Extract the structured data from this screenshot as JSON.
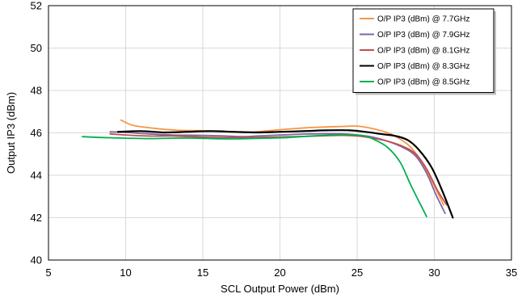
{
  "chart_data": {
    "type": "line",
    "title": "",
    "xlabel": "SCL Output Power (dBm)",
    "ylabel": "Output IP3 (dBm)",
    "xlim": [
      5,
      35
    ],
    "ylim": [
      40,
      52
    ],
    "xticks": [
      5,
      10,
      15,
      20,
      25,
      30,
      35
    ],
    "yticks": [
      40,
      42,
      44,
      46,
      48,
      50,
      52
    ],
    "grid": true,
    "legend_position": "top-right",
    "series": [
      {
        "name": "O/P IP3 (dBm) @ 7.7GHz",
        "color": "#f79646",
        "points": [
          [
            9.7,
            46.6
          ],
          [
            10.5,
            46.35
          ],
          [
            12,
            46.2
          ],
          [
            13.5,
            46.12
          ],
          [
            15,
            46.1
          ],
          [
            16.5,
            46.05
          ],
          [
            17.5,
            46.03
          ],
          [
            18.5,
            46.05
          ],
          [
            20,
            46.15
          ],
          [
            22,
            46.25
          ],
          [
            24,
            46.3
          ],
          [
            25,
            46.32
          ],
          [
            26,
            46.2
          ],
          [
            27,
            46.0
          ],
          [
            27.8,
            45.7
          ],
          [
            28.5,
            45.3
          ],
          [
            29.3,
            44.5
          ],
          [
            30,
            43.5
          ],
          [
            30.6,
            42.6
          ]
        ]
      },
      {
        "name": "O/P IP3 (dBm) @ 7.9GHz",
        "color": "#8064a2",
        "points": [
          [
            9,
            46.05
          ],
          [
            10,
            46.02
          ],
          [
            11.5,
            45.95
          ],
          [
            13,
            45.9
          ],
          [
            15,
            45.88
          ],
          [
            16.5,
            45.85
          ],
          [
            17.5,
            45.82
          ],
          [
            18.5,
            45.85
          ],
          [
            20,
            45.9
          ],
          [
            22,
            45.95
          ],
          [
            24,
            45.95
          ],
          [
            25,
            45.9
          ],
          [
            26,
            45.8
          ],
          [
            27,
            45.6
          ],
          [
            28,
            45.3
          ],
          [
            28.8,
            44.9
          ],
          [
            29.5,
            44.1
          ],
          [
            30.1,
            43.1
          ],
          [
            30.7,
            42.2
          ]
        ]
      },
      {
        "name": "O/P IP3 (dBm) @ 8.1GHz",
        "color": "#c0504d",
        "points": [
          [
            9,
            45.95
          ],
          [
            10,
            45.9
          ],
          [
            11.5,
            45.85
          ],
          [
            13,
            45.85
          ],
          [
            15,
            45.8
          ],
          [
            16.5,
            45.78
          ],
          [
            18,
            45.78
          ],
          [
            19.5,
            45.8
          ],
          [
            21,
            45.82
          ],
          [
            22.5,
            45.85
          ],
          [
            24,
            45.88
          ],
          [
            25,
            45.85
          ],
          [
            26,
            45.75
          ],
          [
            27,
            45.6
          ],
          [
            28,
            45.35
          ],
          [
            28.8,
            45.0
          ],
          [
            29.5,
            44.3
          ],
          [
            30.2,
            43.3
          ],
          [
            30.8,
            42.6
          ]
        ]
      },
      {
        "name": "O/P IP3 (dBm) @ 8.3GHz",
        "color": "#000000",
        "points": [
          [
            9.5,
            46.05
          ],
          [
            11,
            46.08
          ],
          [
            12.5,
            46.02
          ],
          [
            14,
            46.05
          ],
          [
            15.5,
            46.08
          ],
          [
            17,
            46.05
          ],
          [
            18.5,
            46.02
          ],
          [
            20,
            46.05
          ],
          [
            21.5,
            46.08
          ],
          [
            23,
            46.12
          ],
          [
            24.5,
            46.12
          ],
          [
            25.5,
            46.05
          ],
          [
            26.5,
            45.95
          ],
          [
            27.5,
            45.85
          ],
          [
            28.3,
            45.65
          ],
          [
            29,
            45.2
          ],
          [
            29.8,
            44.4
          ],
          [
            30.5,
            43.3
          ],
          [
            31.2,
            42.0
          ]
        ]
      },
      {
        "name": "O/P IP3 (dBm) @ 8.5GHz",
        "color": "#00b050",
        "points": [
          [
            7.2,
            45.82
          ],
          [
            8.5,
            45.78
          ],
          [
            10,
            45.75
          ],
          [
            11.5,
            45.73
          ],
          [
            13,
            45.75
          ],
          [
            14.5,
            45.75
          ],
          [
            16,
            45.72
          ],
          [
            17.5,
            45.72
          ],
          [
            19,
            45.75
          ],
          [
            20.5,
            45.78
          ],
          [
            22,
            45.85
          ],
          [
            23.5,
            45.9
          ],
          [
            24.5,
            45.92
          ],
          [
            25.5,
            45.85
          ],
          [
            26.2,
            45.65
          ],
          [
            27,
            45.3
          ],
          [
            27.8,
            44.6
          ],
          [
            28.5,
            43.5
          ],
          [
            29.5,
            42.05
          ]
        ]
      }
    ]
  }
}
